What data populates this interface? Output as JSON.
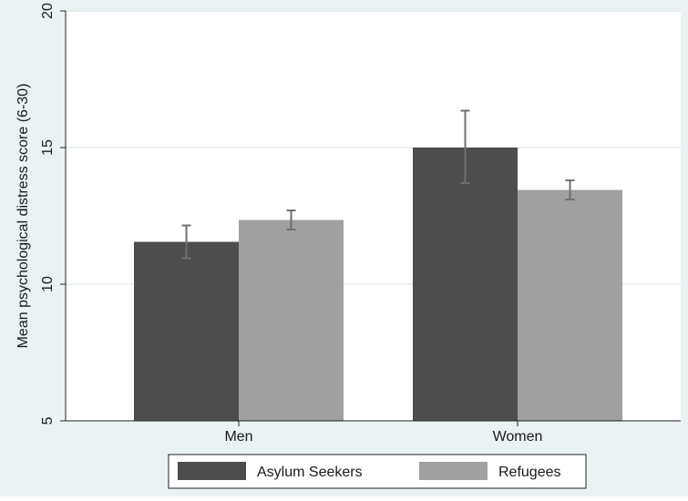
{
  "chart_data": {
    "type": "bar",
    "title": "",
    "xlabel": "",
    "ylabel": "Mean psychological distress score (6-30)",
    "categories": [
      "Men",
      "Women"
    ],
    "ylim": [
      5,
      20
    ],
    "yticks": [
      5,
      10,
      15,
      20
    ],
    "grid": true,
    "legend_position": "bottom",
    "series": [
      {
        "name": "Asylum Seekers",
        "color": "#4d4d4d",
        "values": [
          11.55,
          15.0
        ],
        "error_low": [
          10.95,
          13.7
        ],
        "error_high": [
          12.15,
          16.35
        ]
      },
      {
        "name": "Refugees",
        "color": "#a0a0a0",
        "values": [
          12.35,
          13.45
        ],
        "error_low": [
          12.0,
          13.1
        ],
        "error_high": [
          12.7,
          13.8
        ]
      }
    ]
  }
}
